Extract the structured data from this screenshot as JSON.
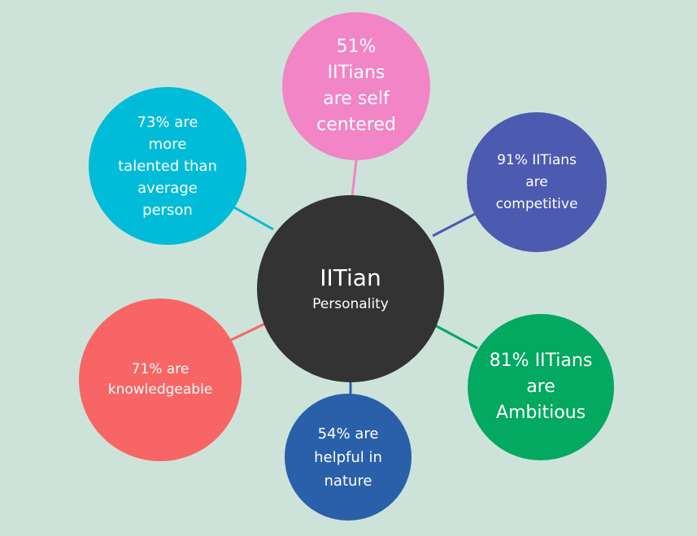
{
  "center": {
    "title": "IITian",
    "subtitle": "Personality"
  },
  "nodes": [
    {
      "id": "self-centered",
      "text": "51%\nIITians\nare self\ncentered",
      "color": "#f185c6"
    },
    {
      "id": "competitive",
      "text": "91% IITians\nare\ncompetitive",
      "color": "#4c5aaf"
    },
    {
      "id": "ambitious",
      "text": "81% IITians\nare\nAmbitious",
      "color": "#03a861"
    },
    {
      "id": "helpful",
      "text": "54% are\nhelpful in\nnature",
      "color": "#2960a9"
    },
    {
      "id": "knowledgeable",
      "text": "71% are\nknowledgeable",
      "color": "#f76565"
    },
    {
      "id": "talented",
      "text": "73% are\nmore\ntalented than\naverage\nperson",
      "color": "#00bcd8"
    }
  ],
  "colors": {
    "background": "#cde3d9",
    "center": "#333333"
  }
}
